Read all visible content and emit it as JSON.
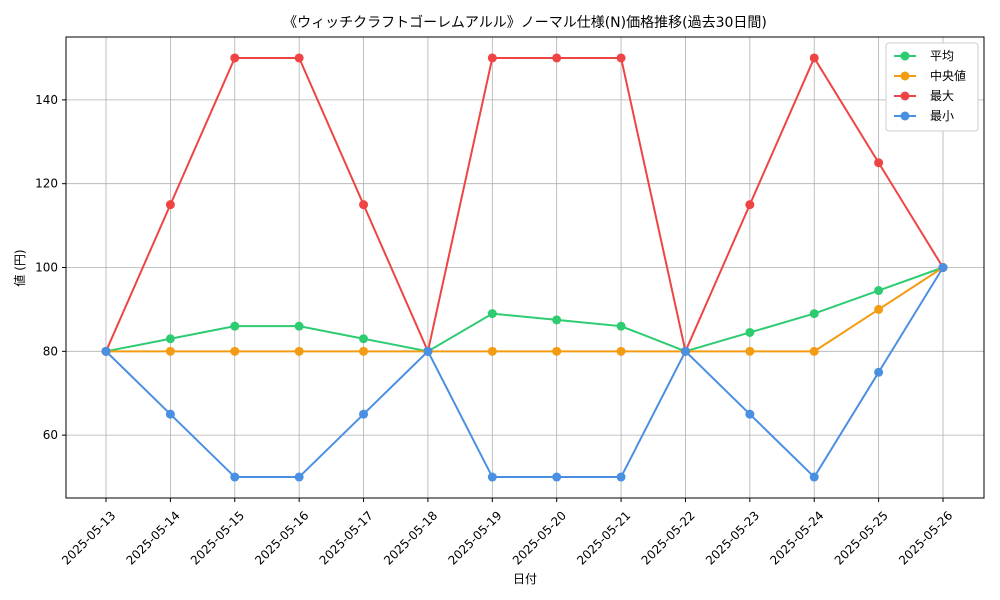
{
  "chart_data": {
    "type": "line",
    "title": "《ウィッチクラフトゴーレムアルル》ノーマル仕様(N)価格推移(過去30日間)",
    "xlabel": "日付",
    "ylabel": "値 (円)",
    "categories": [
      "2025-05-13",
      "2025-05-14",
      "2025-05-15",
      "2025-05-16",
      "2025-05-17",
      "2025-05-18",
      "2025-05-19",
      "2025-05-20",
      "2025-05-21",
      "2025-05-22",
      "2025-05-23",
      "2025-05-24",
      "2025-05-25",
      "2025-05-26"
    ],
    "ylim": [
      45,
      155
    ],
    "yticks": [
      60,
      80,
      100,
      120,
      140
    ],
    "grid": true,
    "legend_position": "top-right",
    "series": [
      {
        "name": "平均",
        "color": "#2ecc71",
        "values": [
          80,
          83,
          86,
          86,
          83,
          80,
          89,
          87.5,
          86,
          80,
          84.5,
          89,
          94.5,
          100
        ]
      },
      {
        "name": "中央値",
        "color": "#f39c12",
        "values": [
          80,
          80,
          80,
          80,
          80,
          80,
          80,
          80,
          80,
          80,
          80,
          80,
          90,
          100
        ]
      },
      {
        "name": "最大",
        "color": "#ef4444",
        "values": [
          80,
          115,
          150,
          150,
          115,
          80,
          150,
          150,
          150,
          80,
          115,
          150,
          125,
          100
        ]
      },
      {
        "name": "最小",
        "color": "#4a90e2",
        "values": [
          80,
          65,
          50,
          50,
          65,
          80,
          50,
          50,
          50,
          80,
          65,
          50,
          75,
          100
        ]
      }
    ]
  }
}
